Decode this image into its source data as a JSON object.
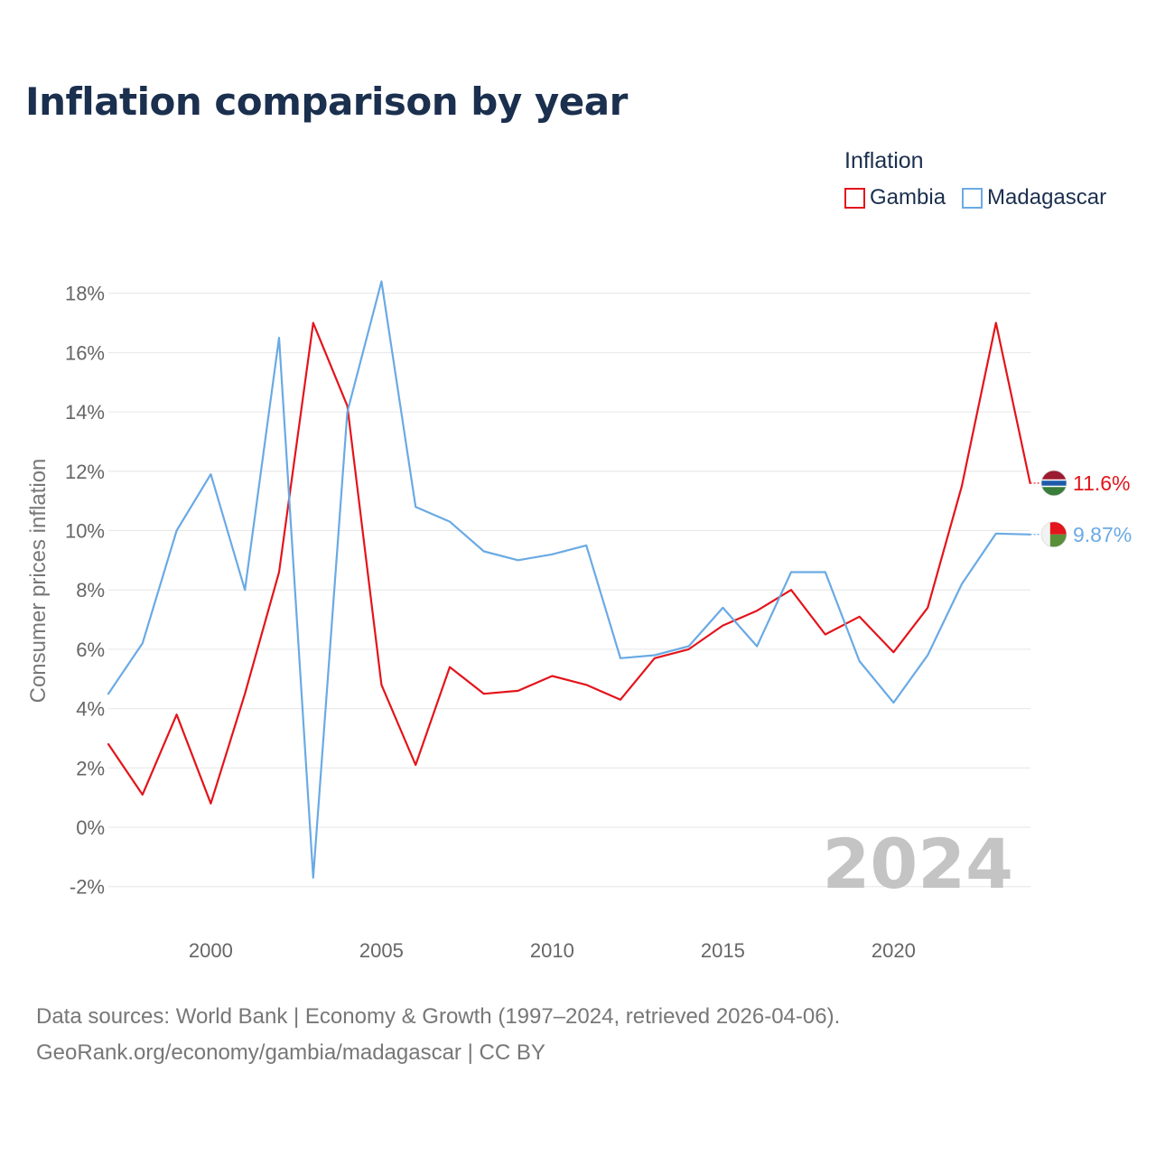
{
  "title": "Inflation comparison by year",
  "legend": {
    "title": "Inflation",
    "items": [
      {
        "label": "Gambia",
        "color": "#e3141b"
      },
      {
        "label": "Madagascar",
        "color": "#6aaae4"
      }
    ]
  },
  "footer": {
    "line1": "Data sources: World Bank | Economy & Growth (1997–2024, retrieved 2026-04-06).",
    "line2": "GeoRank.org/economy/gambia/madagascar | CC BY"
  },
  "chart_data": {
    "type": "line",
    "title": "Inflation comparison by year",
    "xlabel": "",
    "ylabel": "Consumer prices inflation",
    "xlim": [
      1997,
      2024
    ],
    "ylim": [
      -2.8,
      18.8
    ],
    "xticks": [
      2000,
      2005,
      2010,
      2015,
      2020
    ],
    "yticks": [
      -2,
      0,
      2,
      4,
      6,
      8,
      10,
      12,
      14,
      16,
      18
    ],
    "ytick_labels": [
      "-2%",
      "0%",
      "2%",
      "4%",
      "6%",
      "8%",
      "10%",
      "12%",
      "14%",
      "16%",
      "18%"
    ],
    "grid": true,
    "year_watermark": "2024",
    "x": [
      1997,
      1998,
      1999,
      2000,
      2001,
      2002,
      2003,
      2004,
      2005,
      2006,
      2007,
      2008,
      2009,
      2010,
      2011,
      2012,
      2013,
      2014,
      2015,
      2016,
      2017,
      2018,
      2019,
      2020,
      2021,
      2022,
      2023,
      2024
    ],
    "series": [
      {
        "name": "Gambia",
        "color": "#e3141b",
        "end_label": "11.6%",
        "flag_colors": [
          "#9b1b30",
          "#1e5aa8",
          "#3a7d3a"
        ],
        "values": [
          2.8,
          1.1,
          3.8,
          0.8,
          4.5,
          8.6,
          17.0,
          14.2,
          4.8,
          2.1,
          5.4,
          4.5,
          4.6,
          5.1,
          4.8,
          4.3,
          5.7,
          6.0,
          6.8,
          7.3,
          8.0,
          6.5,
          7.1,
          5.9,
          7.4,
          11.5,
          17.0,
          11.6
        ]
      },
      {
        "name": "Madagascar",
        "color": "#6aaae4",
        "end_label": "9.87%",
        "flag_colors": [
          "#f2f2f2",
          "#e3141b",
          "#5a8f3a"
        ],
        "values": [
          4.5,
          6.2,
          10.0,
          11.9,
          8.0,
          16.5,
          -1.7,
          14.0,
          18.4,
          10.8,
          10.3,
          9.3,
          9.0,
          9.2,
          9.5,
          5.7,
          5.8,
          6.1,
          7.4,
          6.1,
          8.6,
          8.6,
          5.6,
          4.2,
          5.8,
          8.2,
          9.9,
          9.87
        ]
      }
    ]
  }
}
